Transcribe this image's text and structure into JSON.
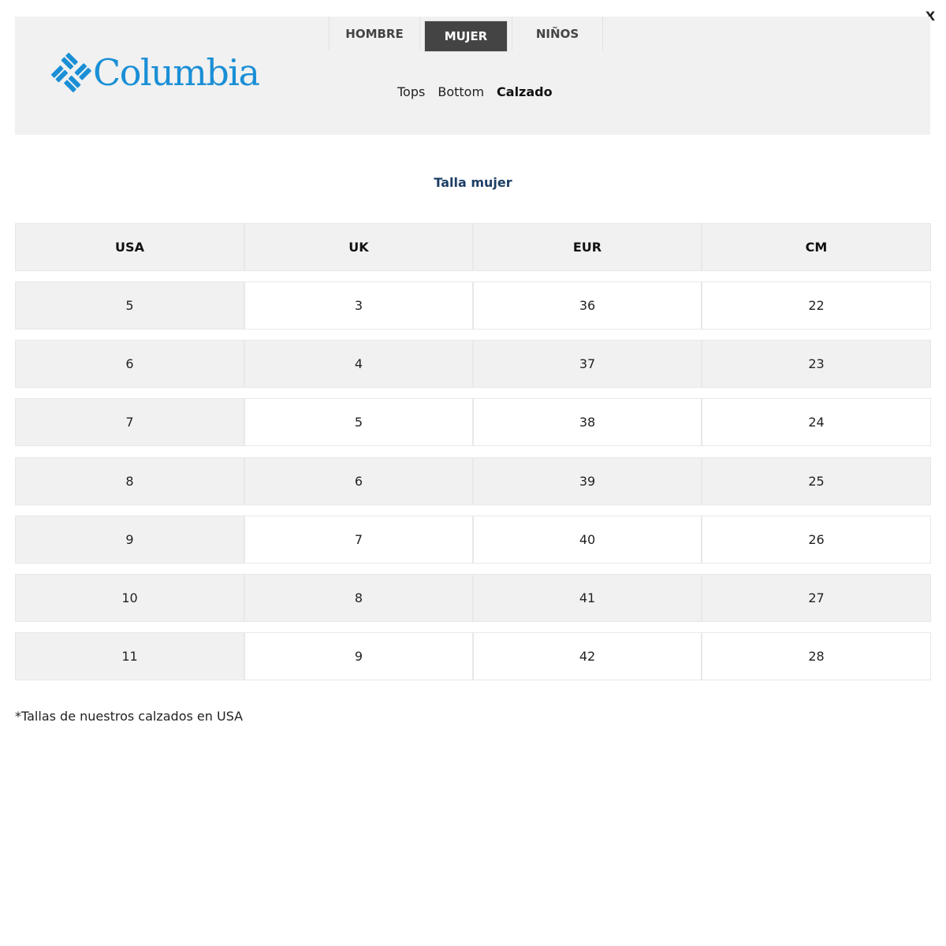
{
  "close_label": "X",
  "brand": {
    "name": "Columbia",
    "color": "#1a8fd6"
  },
  "tabs": [
    {
      "label": "HOMBRE",
      "active": false
    },
    {
      "label": "MUJER",
      "active": true
    },
    {
      "label": "NIÑOS",
      "active": false
    }
  ],
  "subnav": [
    {
      "label": "Tops",
      "active": false
    },
    {
      "label": "Bottom",
      "active": false
    },
    {
      "label": "Calzado",
      "active": true
    }
  ],
  "title": "Talla mujer",
  "table": {
    "headers": [
      "USA",
      "UK",
      "EUR",
      "CM"
    ],
    "rows": [
      [
        "5",
        "3",
        "36",
        "22"
      ],
      [
        "6",
        "4",
        "37",
        "23"
      ],
      [
        "7",
        "5",
        "38",
        "24"
      ],
      [
        "8",
        "6",
        "39",
        "25"
      ],
      [
        "9",
        "7",
        "40",
        "26"
      ],
      [
        "10",
        "8",
        "41",
        "27"
      ],
      [
        "11",
        "9",
        "42",
        "28"
      ]
    ]
  },
  "note": "*Tallas de nuestros calzados en USA"
}
